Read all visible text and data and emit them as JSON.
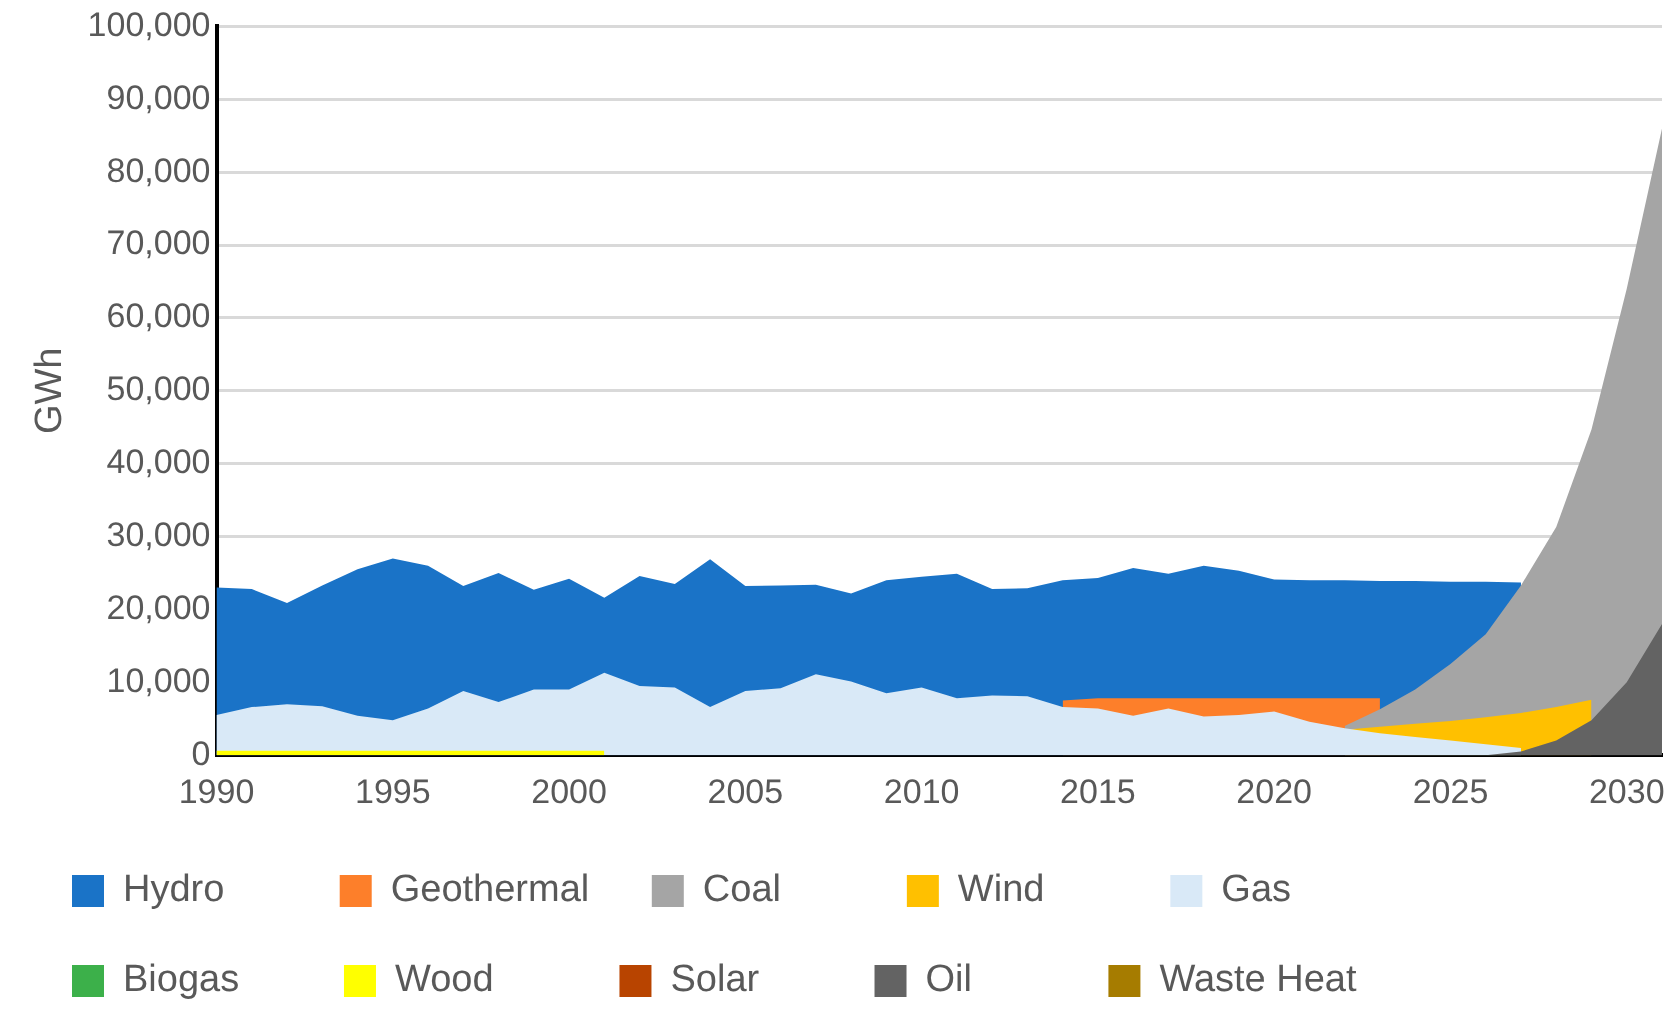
{
  "chart_data": {
    "type": "area",
    "ylabel": "GWh",
    "x": [
      1990,
      1991,
      1992,
      1993,
      1994,
      1995,
      1996,
      1997,
      1998,
      1999,
      2000,
      2001,
      2002,
      2003,
      2004,
      2005,
      2006,
      2007,
      2008,
      2009,
      2010,
      2011,
      2012,
      2013,
      2014,
      2015,
      2016,
      2017,
      2018,
      2019,
      2020,
      2021,
      2022,
      2023,
      2024,
      2025,
      2026,
      2027,
      2028,
      2029,
      2030,
      2031
    ],
    "xlim": [
      1990,
      2031
    ],
    "xticks": [
      1990,
      1995,
      2000,
      2005,
      2010,
      2015,
      2020,
      2025,
      2030
    ],
    "ylim": [
      0,
      100000
    ],
    "yticks": [
      {
        "value": 0,
        "label": "0"
      },
      {
        "value": 10000,
        "label": "10,000"
      },
      {
        "value": 20000,
        "label": "20,000"
      },
      {
        "value": 30000,
        "label": "30,000"
      },
      {
        "value": 40000,
        "label": "40,000"
      },
      {
        "value": 50000,
        "label": "50,000"
      },
      {
        "value": 60000,
        "label": "60,000"
      },
      {
        "value": 70000,
        "label": "70,000"
      },
      {
        "value": 80000,
        "label": "80,000"
      },
      {
        "value": 90000,
        "label": "90,000"
      },
      {
        "value": 100000,
        "label": "100,000"
      }
    ],
    "grid": "y",
    "legend": "bottom",
    "series": [
      {
        "name": "Hydro",
        "color": "#1a73c7",
        "values": [
          23000,
          22800,
          20900,
          23300,
          25500,
          27000,
          26000,
          23200,
          25000,
          22700,
          24200,
          21600,
          24600,
          23500,
          26900,
          23200,
          23300,
          23400,
          22200,
          24000,
          24500,
          24900,
          22800,
          22900,
          24000,
          24300,
          25700,
          24900,
          26000,
          25300,
          24100,
          24000,
          24000,
          23900,
          23900,
          23800,
          23800,
          23700,
          null,
          null,
          null,
          null
        ]
      },
      {
        "name": "Geothermal",
        "color": "#fd7f2a",
        "values": [
          null,
          null,
          null,
          null,
          null,
          null,
          null,
          null,
          null,
          null,
          null,
          null,
          null,
          null,
          null,
          null,
          null,
          null,
          null,
          null,
          null,
          null,
          null,
          null,
          7500,
          7800,
          7800,
          7800,
          7800,
          7800,
          7800,
          7800,
          7800,
          7800,
          null,
          null,
          null,
          null,
          null,
          null,
          null,
          null
        ]
      },
      {
        "name": "Coal",
        "color": "#a5a5a5",
        "values": [
          null,
          null,
          null,
          null,
          null,
          null,
          null,
          null,
          null,
          null,
          null,
          null,
          null,
          null,
          null,
          null,
          null,
          null,
          null,
          null,
          null,
          null,
          null,
          null,
          null,
          null,
          null,
          null,
          null,
          null,
          null,
          null,
          4000,
          6300,
          9000,
          12500,
          16600,
          23300,
          31300,
          44700,
          64000,
          86000
        ]
      },
      {
        "name": "Wind",
        "color": "#ffc000",
        "values": [
          null,
          null,
          null,
          null,
          null,
          null,
          null,
          null,
          null,
          null,
          null,
          null,
          null,
          null,
          null,
          null,
          null,
          null,
          null,
          null,
          null,
          null,
          null,
          null,
          null,
          null,
          null,
          null,
          null,
          null,
          null,
          null,
          3500,
          3900,
          4300,
          4700,
          5200,
          5800,
          6600,
          7600,
          null,
          null
        ]
      },
      {
        "name": "Gas",
        "color": "#d9e9f7",
        "values": [
          5500,
          6600,
          7000,
          6700,
          5400,
          4800,
          6400,
          8800,
          7300,
          9000,
          9000,
          11300,
          9500,
          9300,
          6600,
          8800,
          9200,
          11100,
          10100,
          8500,
          9300,
          7800,
          8200,
          8100,
          6600,
          6400,
          5400,
          6400,
          5300,
          5500,
          6000,
          4600,
          3700,
          3000,
          2500,
          2000,
          1500,
          1000,
          null,
          null,
          null,
          null
        ]
      },
      {
        "name": "Biogas",
        "color": "#3cb04a",
        "values": [
          null,
          null,
          null,
          null,
          null,
          null,
          null,
          null,
          null,
          null,
          null,
          null,
          null,
          null,
          null,
          null,
          null,
          null,
          null,
          null,
          null,
          null,
          null,
          null,
          null,
          null,
          null,
          null,
          null,
          null,
          null,
          null,
          null,
          null,
          null,
          null,
          null,
          null,
          null,
          null,
          null,
          null
        ]
      },
      {
        "name": "Wood",
        "color": "#ffff00",
        "values": [
          600,
          600,
          600,
          600,
          600,
          600,
          600,
          600,
          600,
          600,
          600,
          600,
          null,
          null,
          null,
          null,
          null,
          null,
          null,
          null,
          null,
          null,
          null,
          null,
          null,
          null,
          null,
          null,
          null,
          null,
          null,
          null,
          null,
          null,
          null,
          null,
          null,
          null,
          null,
          null,
          null,
          null
        ]
      },
      {
        "name": "Solar",
        "color": "#b84400",
        "values": [
          null,
          null,
          null,
          null,
          null,
          null,
          null,
          null,
          null,
          null,
          null,
          null,
          null,
          null,
          null,
          null,
          null,
          null,
          null,
          null,
          null,
          null,
          null,
          null,
          null,
          null,
          null,
          null,
          null,
          null,
          null,
          null,
          null,
          null,
          null,
          null,
          null,
          null,
          null,
          null,
          null,
          null
        ]
      },
      {
        "name": "Oil",
        "color": "#636363",
        "values": [
          null,
          null,
          null,
          null,
          null,
          null,
          null,
          null,
          null,
          null,
          null,
          null,
          null,
          null,
          null,
          null,
          null,
          null,
          null,
          null,
          null,
          null,
          null,
          null,
          null,
          null,
          null,
          null,
          null,
          null,
          null,
          null,
          null,
          null,
          null,
          null,
          0,
          500,
          2000,
          4800,
          10000,
          18000
        ]
      },
      {
        "name": "Waste Heat",
        "color": "#a67c00",
        "values": [
          null,
          null,
          null,
          null,
          null,
          null,
          null,
          null,
          null,
          null,
          null,
          null,
          null,
          null,
          null,
          null,
          null,
          null,
          null,
          null,
          null,
          null,
          null,
          null,
          null,
          null,
          null,
          null,
          null,
          null,
          null,
          null,
          null,
          null,
          null,
          null,
          null,
          null,
          null,
          null,
          null,
          null
        ]
      }
    ]
  }
}
